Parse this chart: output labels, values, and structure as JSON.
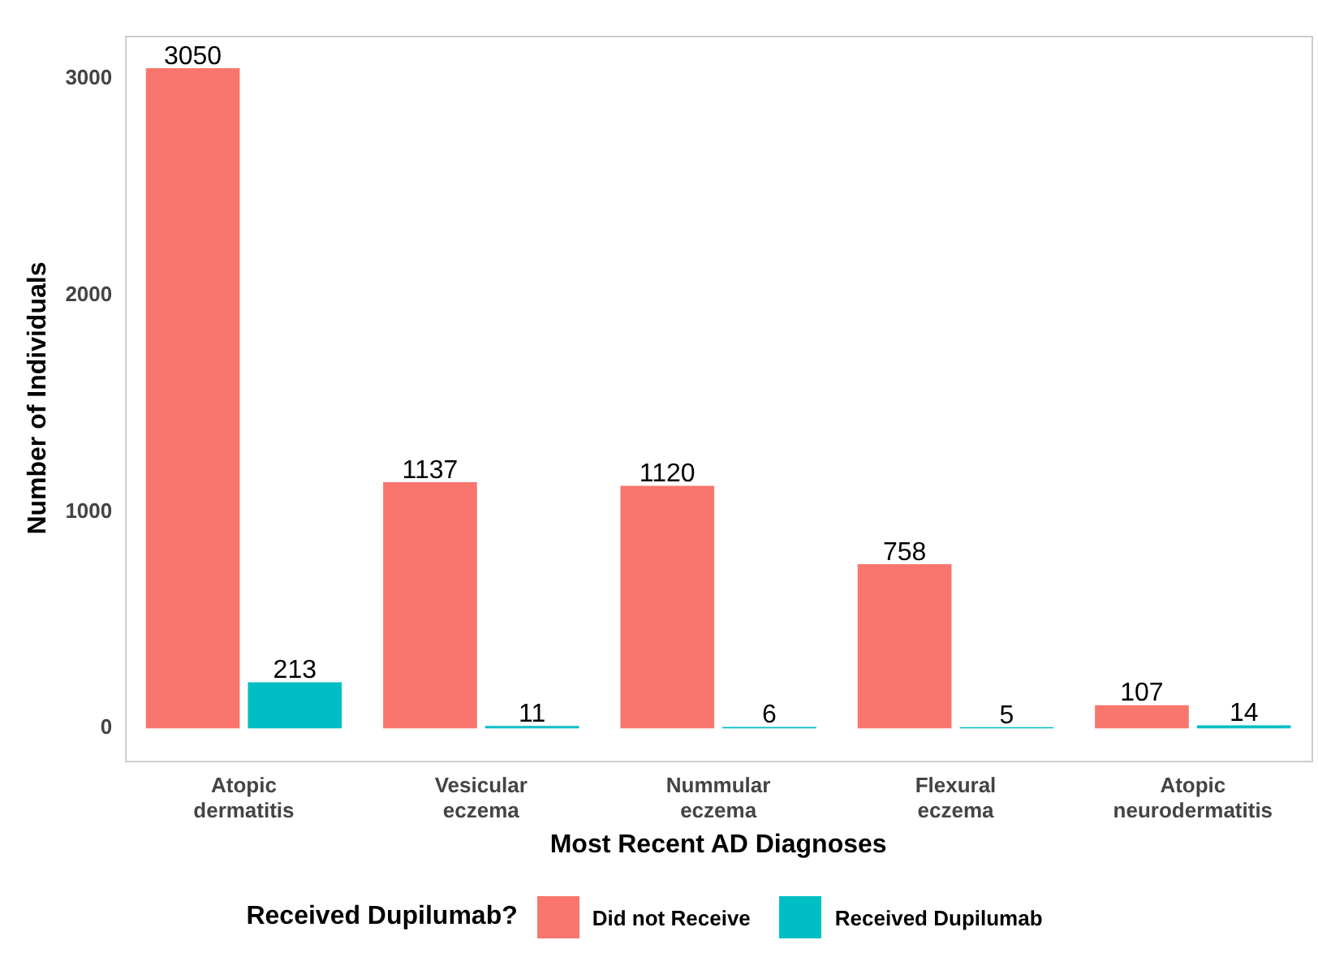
{
  "chart_data": {
    "type": "bar",
    "xlabel": "Most Recent AD Diagnoses",
    "ylabel": "Number of Individuals",
    "legend_title": "Received Dupilumab?",
    "categories": [
      "Atopic\ndermatitis",
      "Vesicular\neczema",
      "Nummular\neczema",
      "Flexural\neczema",
      "Atopic\nneurodermatitis"
    ],
    "series": [
      {
        "name": "Did not Receive",
        "color": "#f8766d",
        "values": [
          3050,
          1137,
          1120,
          758,
          107
        ]
      },
      {
        "name": "Received Dupilumab",
        "color": "#00bfc4",
        "values": [
          213,
          11,
          6,
          5,
          14
        ]
      }
    ],
    "ylim": [
      -150,
      3200
    ],
    "yticks": [
      0,
      1000,
      2000,
      3000
    ],
    "grid": false,
    "legend": "bottom",
    "data_labels": true
  }
}
